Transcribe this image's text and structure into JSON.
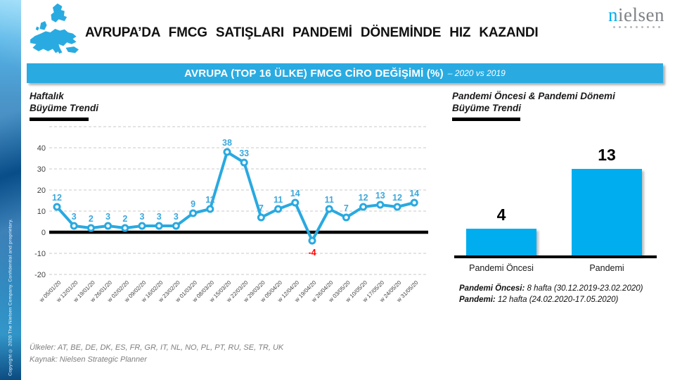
{
  "sidebar": {
    "copyright": "Copyright © 2020 The Nielsen Company. Confidential and proprietary."
  },
  "header": {
    "title": "AVRUPA’DA FMCG SATIŞLARI PANDEMİ DÖNEMİNDE HIZ KAZANDI",
    "logo": {
      "first_letter": "n",
      "rest": "ielsen"
    }
  },
  "banner": {
    "title": "AVRUPA (TOP 16 ÜLKE) FMCG CİRO DEĞİŞİMİ (%)",
    "subtitle": "– 2020 vs 2019"
  },
  "line_section": {
    "heading_line1": "Haftalık",
    "heading_line2": "Büyüme Trendi"
  },
  "bar_section": {
    "heading_line1": "Pandemi Öncesi & Pandemi Dönemi",
    "heading_line2": "Büyüme Trendi",
    "notes": [
      {
        "label": "Pandemi Öncesi:",
        "text": " 8 hafta (30.12.2019-23.02.2020)"
      },
      {
        "label": "Pandemi:",
        "text": " 12 hafta (24.02.2020-17.05.2020)"
      }
    ]
  },
  "footer": {
    "countries": "Ülkeler: AT, BE, DE, DK, ES, FR, GR, IT, NL, NO, PL, PT, RU, SE, TR, UK",
    "source": "Kaynak: Nielsen Strategic Planner"
  },
  "colors": {
    "accent": "#29ABE2",
    "line": "#29A9E0",
    "bar": "#00AEEF",
    "data_label": "#3BA8DC",
    "negative_label": "#FF0000"
  },
  "chart_data": [
    {
      "type": "line",
      "title": "Haftalık Büyüme Trendi",
      "categories": [
        "w 05/01/20",
        "w 12/01/20",
        "w 19/01/20",
        "w 26/01/20",
        "w 02/02/20",
        "w 09/02/20",
        "w 16/02/20",
        "w 23/02/20",
        "w 01/03/20",
        "w 08/03/20",
        "w 15/03/20",
        "w 22/03/20",
        "w 29/03/20",
        "w 05/04/20",
        "w 12/04/20",
        "w 19/04/20",
        "w 26/04/20",
        "w 03/05/20",
        "w 10/05/20",
        "w 17/05/20",
        "w 24/05/20",
        "w 31/05/20"
      ],
      "values": [
        12,
        3,
        2,
        3,
        2,
        3,
        3,
        3,
        9,
        11,
        38,
        33,
        7,
        11,
        14,
        -4,
        11,
        7,
        12,
        13,
        12,
        14
      ],
      "ylim": [
        -20,
        50
      ],
      "yticks": [
        40,
        30,
        20,
        10,
        0,
        -10,
        -20
      ],
      "grid": true,
      "legend": "none",
      "series_color": "#29A9E0",
      "label_color": "#3BA8DC",
      "negative_label_color": "#FF0000"
    },
    {
      "type": "bar",
      "title": "Pandemi Öncesi & Pandemi Dönemi Büyüme Trendi",
      "categories": [
        "Pandemi Öncesi",
        "Pandemi"
      ],
      "values": [
        4,
        13
      ],
      "bar_color": "#00AEEF",
      "grid": false,
      "legend": "none"
    }
  ]
}
